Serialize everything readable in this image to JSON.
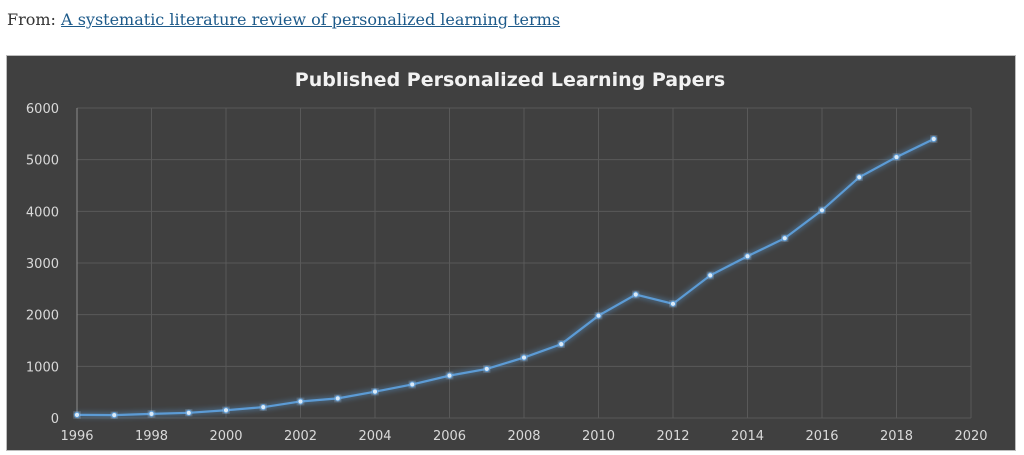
{
  "source": {
    "prefix": "From:",
    "link_text": "A systematic literature review of personalized learning terms"
  },
  "colors": {
    "background": "#404040",
    "grid": "#595959",
    "line": "#5b9bd5",
    "text": "#d9d9d9",
    "title": "#f2f2f2"
  },
  "chart_data": {
    "type": "line",
    "title": "Published Personalized Learning Papers",
    "xlabel": "",
    "ylabel": "",
    "x": [
      1996,
      1997,
      1998,
      1999,
      2000,
      2001,
      2002,
      2003,
      2004,
      2005,
      2006,
      2007,
      2008,
      2009,
      2010,
      2011,
      2012,
      2013,
      2014,
      2015,
      2016,
      2017,
      2018,
      2019
    ],
    "series": [
      {
        "name": "Published Personalized Learning Papers",
        "values": [
          60,
          55,
          80,
          100,
          150,
          210,
          320,
          380,
          510,
          650,
          820,
          950,
          1170,
          1430,
          1980,
          2390,
          2210,
          2760,
          3130,
          3480,
          4020,
          4660,
          5050,
          5400
        ]
      }
    ],
    "xlim": [
      1996,
      2020
    ],
    "ylim": [
      0,
      6000
    ],
    "x_ticks": [
      "1996",
      "1998",
      "2000",
      "2002",
      "2004",
      "2006",
      "2008",
      "2010",
      "2012",
      "2014",
      "2016",
      "2018",
      "2020"
    ],
    "y_ticks": [
      "0",
      "1000",
      "2000",
      "3000",
      "4000",
      "5000",
      "6000"
    ],
    "grid": true,
    "legend": "none"
  }
}
